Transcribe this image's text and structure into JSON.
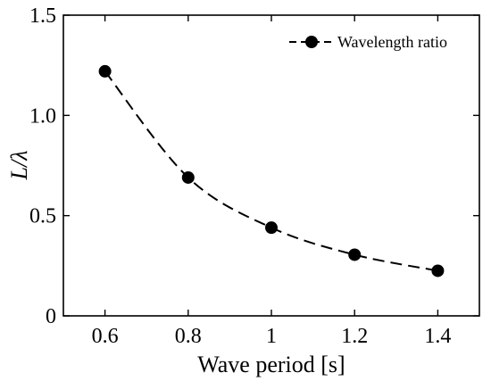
{
  "chart_data": {
    "type": "line",
    "x": [
      0.6,
      0.8,
      1.0,
      1.2,
      1.4
    ],
    "series": [
      {
        "name": "Wavelength ratio",
        "values": [
          1.22,
          0.69,
          0.44,
          0.305,
          0.225
        ],
        "color": "#000000",
        "line_style": "dashed",
        "marker": "circle"
      }
    ],
    "xlabel": "Wave period [s]",
    "ylabel": "L/λ",
    "xlim": [
      0.5,
      1.5
    ],
    "ylim": [
      0,
      1.5
    ],
    "x_ticks": [
      0.6,
      0.8,
      1.0,
      1.2,
      1.4
    ],
    "x_tick_labels": [
      "0.6",
      "0.8",
      "1",
      "1.2",
      "1.4"
    ],
    "y_ticks": [
      0,
      0.5,
      1.0,
      1.5
    ],
    "y_tick_labels": [
      "0",
      "0.5",
      "1.0",
      "1.5"
    ],
    "grid": false,
    "legend_position": "top-right"
  }
}
